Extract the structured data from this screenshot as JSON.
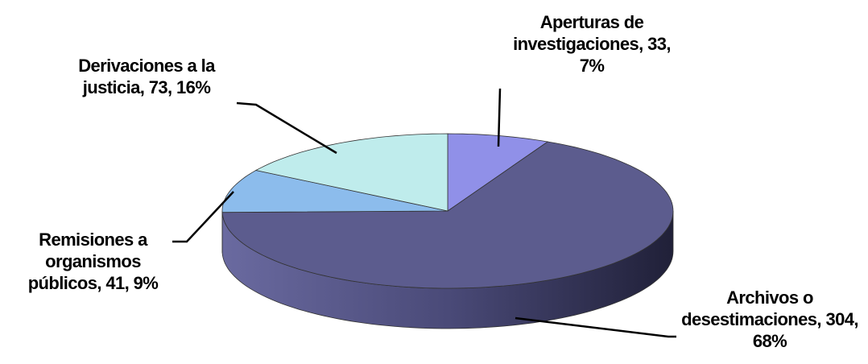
{
  "chart_data": {
    "type": "pie",
    "values": [
      33,
      304,
      41,
      73
    ],
    "value_labels": [
      "Aperturas de investigaciones, 33, 7%",
      "Archivos o desestimaciones, 304, 68%",
      "Remisiones a organismos públicos, 41, 9%",
      "Derivaciones a la justicia, 73, 16%"
    ],
    "colors": [
      "#9090e8",
      "#5c5c8e",
      "#8cbcec",
      "#bfecec"
    ]
  }
}
